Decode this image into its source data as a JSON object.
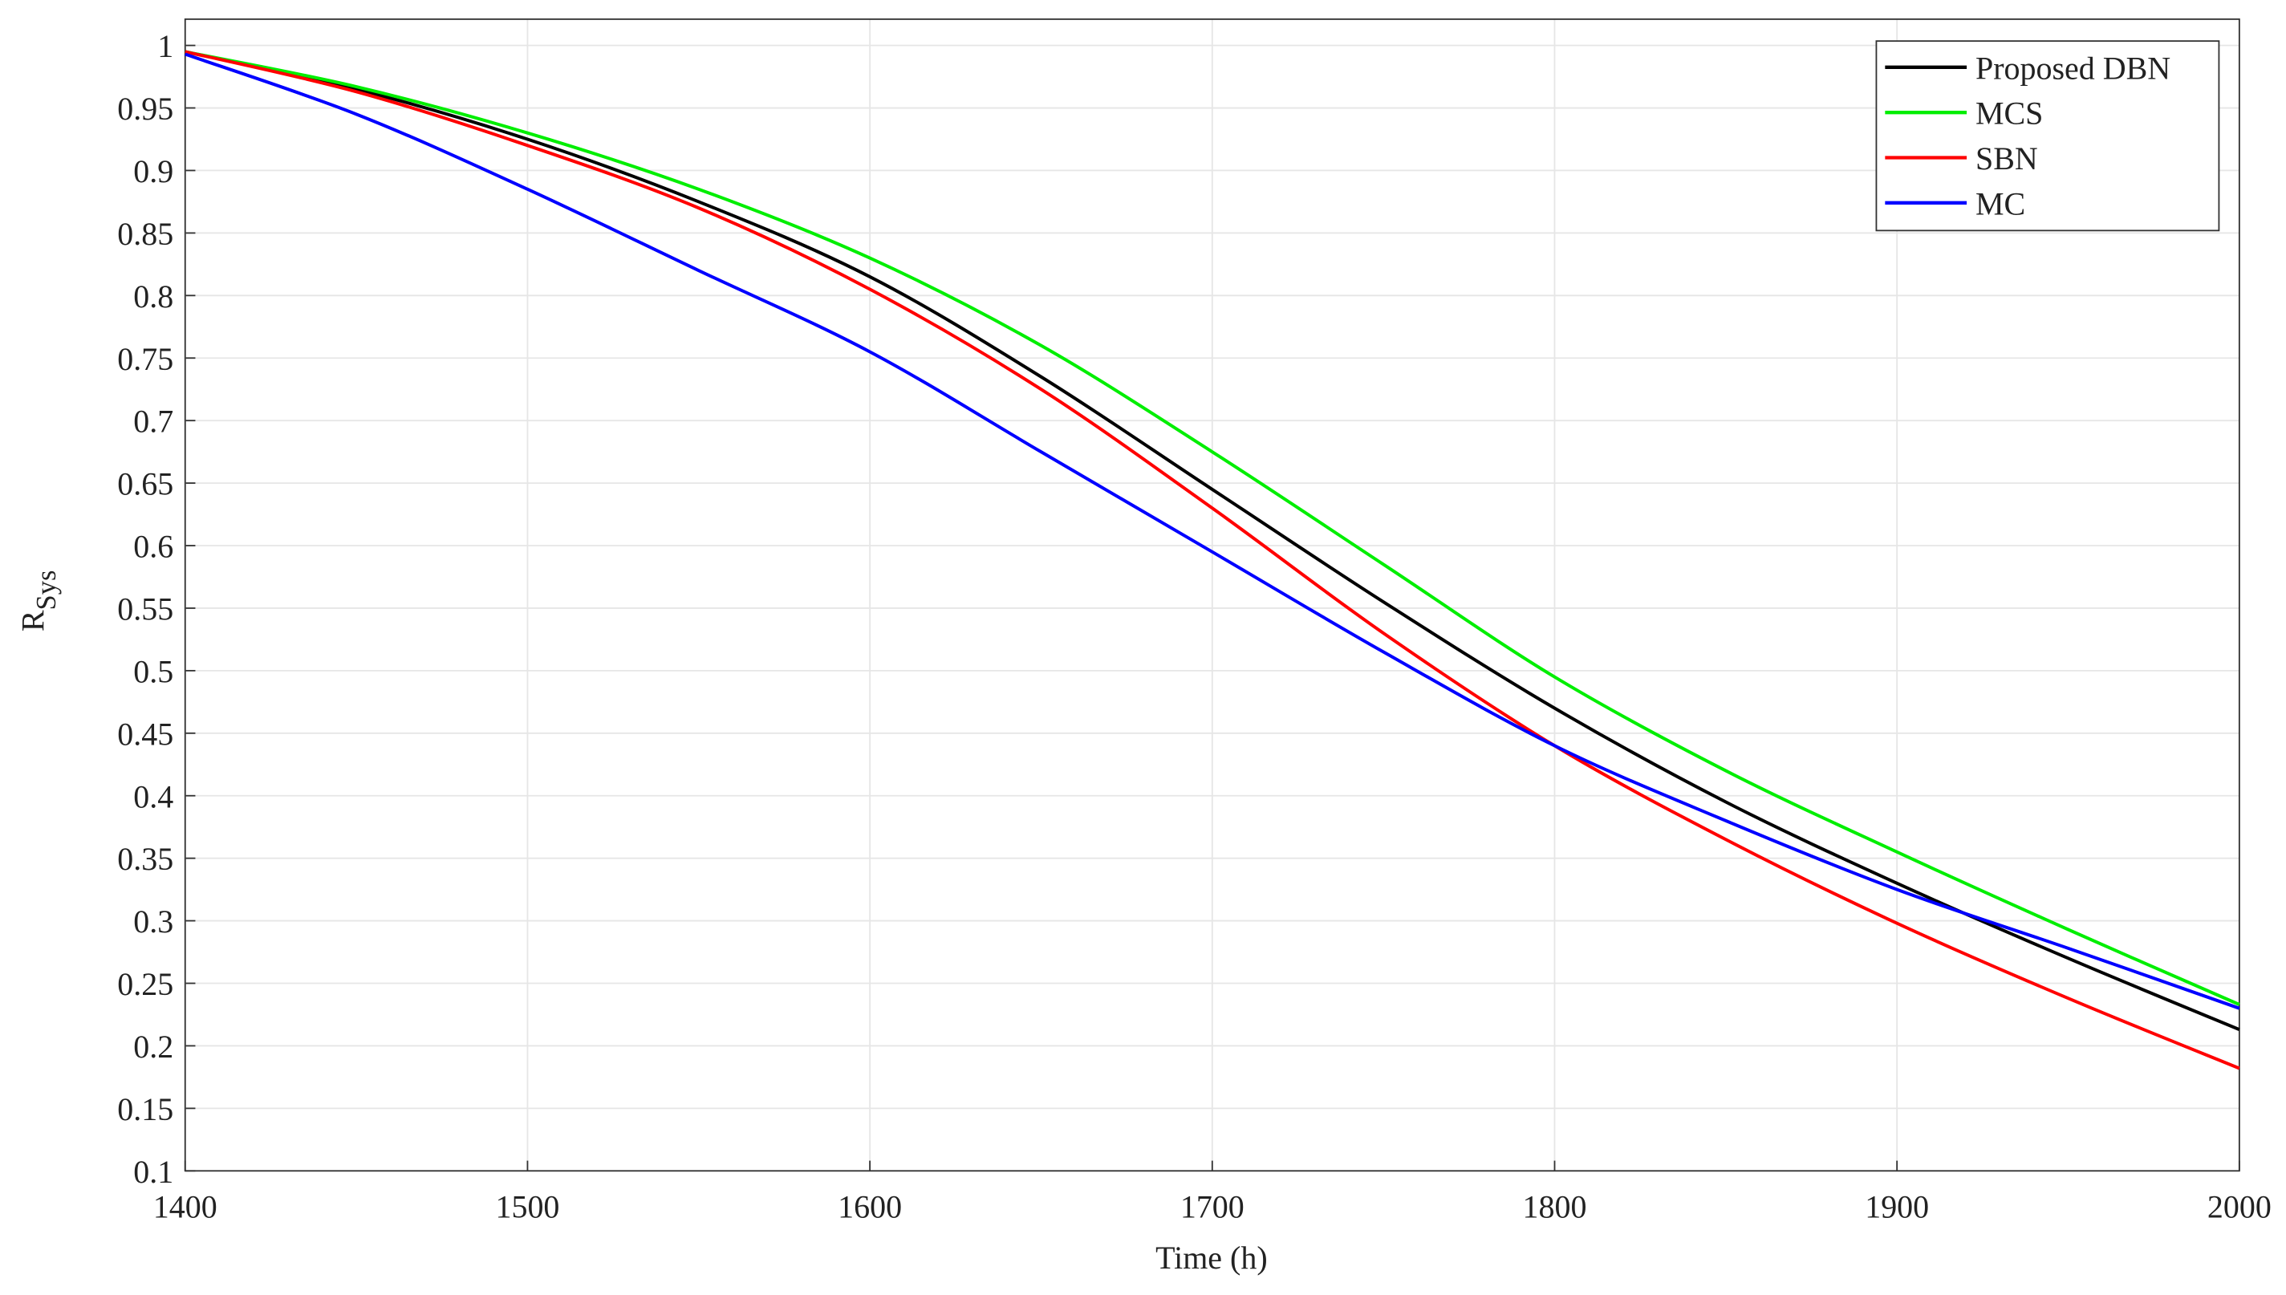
{
  "chart_data": {
    "type": "line",
    "x_label": "Time (h)",
    "y_label": "R",
    "y_label_sub": "Sys",
    "x": [
      1400,
      1450,
      1500,
      1550,
      1600,
      1650,
      1700,
      1750,
      1800,
      1850,
      1900,
      1950,
      2000
    ],
    "series": [
      {
        "name": "Proposed DBN",
        "color": "#000000",
        "values": [
          0.995,
          0.965,
          0.925,
          0.875,
          0.815,
          0.735,
          0.645,
          0.555,
          0.47,
          0.395,
          0.33,
          0.27,
          0.213
        ]
      },
      {
        "name": "MCS",
        "color": "#00ee00",
        "values": [
          0.995,
          0.967,
          0.93,
          0.885,
          0.83,
          0.76,
          0.675,
          0.585,
          0.495,
          0.42,
          0.355,
          0.293,
          0.233
        ]
      },
      {
        "name": "SBN",
        "color": "#ff0000",
        "values": [
          0.995,
          0.963,
          0.92,
          0.87,
          0.805,
          0.725,
          0.63,
          0.53,
          0.44,
          0.365,
          0.298,
          0.238,
          0.182
        ]
      },
      {
        "name": "MC",
        "color": "#0000ff",
        "values": [
          0.993,
          0.945,
          0.885,
          0.82,
          0.755,
          0.675,
          0.595,
          0.515,
          0.44,
          0.38,
          0.325,
          0.278,
          0.23
        ]
      }
    ],
    "xlim": [
      1400,
      2000
    ],
    "xticks": [
      1400,
      1500,
      1600,
      1700,
      1800,
      1900,
      2000
    ],
    "ylim": [
      0.1,
      1.021
    ],
    "yticks": [
      0.1,
      0.15,
      0.2,
      0.25,
      0.3,
      0.35,
      0.4,
      0.45,
      0.5,
      0.55,
      0.6,
      0.65,
      0.7,
      0.75,
      0.8,
      0.85,
      0.9,
      0.95,
      1
    ],
    "grid": true,
    "legend": "upper right"
  }
}
